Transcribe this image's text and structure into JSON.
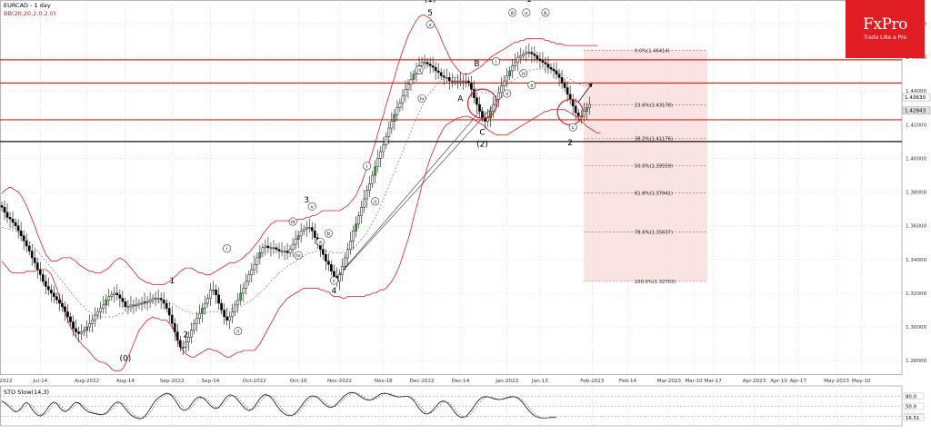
{
  "header": {
    "symbol_title": "EURCAD - 1 day",
    "indicator_label": "BB(20,20.2,0.2.0)",
    "stoch_label": "STO Slow(14,3)"
  },
  "brand": {
    "name": "FxPro",
    "tagline": "Trade Like a Pro",
    "color": "#e11d24"
  },
  "colors": {
    "candle_up": "#ffffff",
    "candle_down": "#000000",
    "bands": "#e02020",
    "midband": "#666666",
    "level_red": "#e02020",
    "level_black": "#111111",
    "fib_zone": "#f7dada"
  },
  "chart_data": {
    "type": "candlestick",
    "symbol": "EURCAD",
    "timeframe": "1 day",
    "y_range": [
      1.272,
      1.494
    ],
    "y_ticks": [
      "1.48000",
      "1.46000",
      "1.44000",
      "1.42000",
      "1.40000",
      "1.38000",
      "1.36000",
      "1.34000",
      "1.32000",
      "1.30000",
      "1.28000"
    ],
    "x_labels": [
      "Jul-2022",
      "Jul-14",
      "Aug-2022",
      "Aug-14",
      "Sep-2022",
      "Sep-14",
      "Oct-2022",
      "Oct-16",
      "Nov-2022",
      "Nov-16",
      "Dec-2022",
      "Dec-14",
      "Jan-2023",
      "Jan-13",
      "Feb-2023",
      "Feb-14",
      "Mar-2023",
      "Mar-10",
      "Mar-17",
      "Apr-2023",
      "Apr-10",
      "Apr-17",
      "May-2023",
      "May-10"
    ],
    "x_label_days": [
      0,
      14,
      31,
      45,
      62,
      76,
      92,
      108,
      123,
      139,
      153,
      167,
      184,
      196,
      215,
      228,
      243,
      252,
      259,
      274,
      283,
      290,
      304,
      313
    ],
    "x_max_day": 330,
    "price_labels": [
      "1.43630",
      "1.42843"
    ],
    "price_label_values": [
      1.4363,
      1.42843
    ],
    "horizontal_levels": [
      {
        "price": 1.4585,
        "color": "red"
      },
      {
        "price": 1.4447,
        "color": "red"
      },
      {
        "price": 1.4229,
        "color": "red"
      },
      {
        "price": 1.41,
        "color": "black"
      }
    ],
    "fibonacci": {
      "start_day": 212,
      "end_day": 257,
      "levels": [
        {
          "label": "0.0%(1.46414)",
          "price": 1.46414
        },
        {
          "label": "23.6%(1.43178)",
          "price": 1.43178
        },
        {
          "label": "38.2%(1.41176)",
          "price": 1.41176
        },
        {
          "label": "50.0%(1.39559)",
          "price": 1.39559
        },
        {
          "label": "61.8%(1.37941)",
          "price": 1.37941
        },
        {
          "label": "78.6%(1.35637)",
          "price": 1.35637
        },
        {
          "label": "100.0%(1.32703)",
          "price": 1.32703
        }
      ]
    },
    "closes": [
      1.371,
      1.368,
      1.365,
      1.364,
      1.362,
      1.36,
      1.357,
      1.354,
      1.351,
      1.348,
      1.345,
      1.341,
      1.338,
      1.334,
      1.331,
      1.327,
      1.324,
      1.322,
      1.32,
      1.318,
      1.316,
      1.314,
      1.312,
      1.309,
      1.306,
      1.303,
      1.299,
      1.297,
      1.296,
      1.297,
      1.298,
      1.3,
      1.302,
      1.304,
      1.307,
      1.309,
      1.311,
      1.313,
      1.316,
      1.318,
      1.319,
      1.32,
      1.319,
      1.317,
      1.315,
      1.312,
      1.312,
      1.313,
      1.313,
      1.313,
      1.314,
      1.314,
      1.315,
      1.315,
      1.316,
      1.317,
      1.317,
      1.317,
      1.316,
      1.314,
      1.311,
      1.307,
      1.302,
      1.297,
      1.292,
      1.288,
      1.288,
      1.291,
      1.294,
      1.298,
      1.302,
      1.305,
      1.308,
      1.311,
      1.314,
      1.317,
      1.322,
      1.322,
      1.319,
      1.314,
      1.31,
      1.306,
      1.304,
      1.306,
      1.309,
      1.313,
      1.316,
      1.32,
      1.323,
      1.327,
      1.331,
      1.334,
      1.337,
      1.341,
      1.344,
      1.347,
      1.348,
      1.347,
      1.347,
      1.347,
      1.346,
      1.345,
      1.345,
      1.345,
      1.344,
      1.346,
      1.349,
      1.352,
      1.354,
      1.357,
      1.358,
      1.359,
      1.359,
      1.357,
      1.353,
      1.349,
      1.346,
      1.343,
      1.339,
      1.337,
      1.333,
      1.33,
      1.327,
      1.331,
      1.336,
      1.341,
      1.346,
      1.351,
      1.357,
      1.361,
      1.366,
      1.371,
      1.376,
      1.381,
      1.385,
      1.39,
      1.395,
      1.4,
      1.404,
      1.408,
      1.413,
      1.418,
      1.422,
      1.426,
      1.43,
      1.433,
      1.437,
      1.441,
      1.444,
      1.447,
      1.45,
      1.453,
      1.455,
      1.457,
      1.457,
      1.456,
      1.455,
      1.454,
      1.452,
      1.451,
      1.449,
      1.448,
      1.448,
      1.446,
      1.446,
      1.446,
      1.446,
      1.446,
      1.446,
      1.446,
      1.445,
      1.441,
      1.436,
      1.432,
      1.428,
      1.424,
      1.422,
      1.424,
      1.428,
      1.432,
      1.435,
      1.439,
      1.443,
      1.446,
      1.449,
      1.452,
      1.455,
      1.457,
      1.46,
      1.461,
      1.462,
      1.463,
      1.463,
      1.462,
      1.461,
      1.459,
      1.458,
      1.457,
      1.456,
      1.454,
      1.453,
      1.452,
      1.45,
      1.448,
      1.445,
      1.442,
      1.438,
      1.435,
      1.431,
      1.427,
      1.425,
      1.425,
      1.428,
      1.43,
      1.432
    ],
    "upper_band": [
      1.379,
      1.381,
      1.382,
      1.383,
      1.382,
      1.381,
      1.38,
      1.378,
      1.375,
      1.372,
      1.368,
      1.364,
      1.36,
      1.355,
      1.351,
      1.347,
      1.343,
      1.341,
      1.339,
      1.339,
      1.339,
      1.34,
      1.341,
      1.341,
      1.341,
      1.341,
      1.34,
      1.339,
      1.337,
      1.336,
      1.335,
      1.334,
      1.333,
      1.333,
      1.332,
      1.332,
      1.332,
      1.333,
      1.334,
      1.335,
      1.337,
      1.339,
      1.34,
      1.341,
      1.34,
      1.339,
      1.337,
      1.335,
      1.333,
      1.331,
      1.329,
      1.328,
      1.327,
      1.326,
      1.326,
      1.325,
      1.325,
      1.325,
      1.325,
      1.325,
      1.326,
      1.327,
      1.328,
      1.33,
      1.331,
      1.333,
      1.334,
      1.335,
      1.335,
      1.335,
      1.334,
      1.333,
      1.332,
      1.332,
      1.331,
      1.331,
      1.331,
      1.332,
      1.333,
      1.334,
      1.335,
      1.336,
      1.337,
      1.338,
      1.338,
      1.338,
      1.339,
      1.34,
      1.341,
      1.343,
      1.344,
      1.346,
      1.348,
      1.35,
      1.352,
      1.355,
      1.357,
      1.359,
      1.361,
      1.362,
      1.363,
      1.363,
      1.363,
      1.363,
      1.363,
      1.363,
      1.363,
      1.363,
      1.364,
      1.364,
      1.364,
      1.365,
      1.365,
      1.366,
      1.366,
      1.367,
      1.368,
      1.369,
      1.369,
      1.369,
      1.369,
      1.369,
      1.369,
      1.369,
      1.37,
      1.371,
      1.372,
      1.374,
      1.376,
      1.378,
      1.382,
      1.385,
      1.39,
      1.394,
      1.399,
      1.404,
      1.409,
      1.415,
      1.421,
      1.426,
      1.432,
      1.437,
      1.443,
      1.448,
      1.454,
      1.459,
      1.464,
      1.468,
      1.473,
      1.476,
      1.479,
      1.482,
      1.484,
      1.485,
      1.485,
      1.484,
      1.483,
      1.481,
      1.478,
      1.475,
      1.471,
      1.467,
      1.464,
      1.46,
      1.457,
      1.455,
      1.453,
      1.451,
      1.45,
      1.45,
      1.45,
      1.451,
      1.452,
      1.453,
      1.454,
      1.455,
      1.457,
      1.458,
      1.46,
      1.461,
      1.462,
      1.463,
      1.464,
      1.465,
      1.466,
      1.467,
      1.468,
      1.469,
      1.469,
      1.47,
      1.47,
      1.471,
      1.471,
      1.471,
      1.471,
      1.471,
      1.471,
      1.471,
      1.47,
      1.47,
      1.469,
      1.469,
      1.468,
      1.468,
      1.468,
      1.467,
      1.467,
      1.467,
      1.467,
      1.467,
      1.467,
      1.467,
      1.467,
      1.467,
      1.467,
      1.467,
      1.467,
      1.467
    ],
    "middle_band": [
      1.359,
      1.359,
      1.358,
      1.358,
      1.357,
      1.357,
      1.356,
      1.355,
      1.354,
      1.352,
      1.351,
      1.349,
      1.347,
      1.345,
      1.343,
      1.341,
      1.339,
      1.337,
      1.335,
      1.333,
      1.331,
      1.329,
      1.327,
      1.325,
      1.323,
      1.321,
      1.319,
      1.317,
      1.315,
      1.313,
      1.312,
      1.31,
      1.309,
      1.308,
      1.307,
      1.306,
      1.306,
      1.306,
      1.306,
      1.306,
      1.306,
      1.306,
      1.307,
      1.308,
      1.308,
      1.309,
      1.31,
      1.311,
      1.312,
      1.313,
      1.313,
      1.314,
      1.315,
      1.315,
      1.315,
      1.315,
      1.315,
      1.315,
      1.315,
      1.315,
      1.315,
      1.314,
      1.314,
      1.313,
      1.312,
      1.311,
      1.31,
      1.309,
      1.309,
      1.308,
      1.308,
      1.308,
      1.308,
      1.308,
      1.308,
      1.309,
      1.309,
      1.309,
      1.309,
      1.309,
      1.309,
      1.309,
      1.31,
      1.31,
      1.311,
      1.311,
      1.312,
      1.312,
      1.313,
      1.314,
      1.315,
      1.316,
      1.317,
      1.319,
      1.32,
      1.322,
      1.323,
      1.325,
      1.327,
      1.329,
      1.33,
      1.332,
      1.333,
      1.335,
      1.336,
      1.337,
      1.338,
      1.339,
      1.34,
      1.341,
      1.342,
      1.343,
      1.344,
      1.344,
      1.345,
      1.345,
      1.345,
      1.345,
      1.345,
      1.345,
      1.344,
      1.344,
      1.344,
      1.344,
      1.344,
      1.344,
      1.345,
      1.346,
      1.347,
      1.348,
      1.35,
      1.352,
      1.354,
      1.356,
      1.359,
      1.362,
      1.365,
      1.368,
      1.372,
      1.376,
      1.38,
      1.384,
      1.388,
      1.392,
      1.396,
      1.4,
      1.404,
      1.408,
      1.412,
      1.416,
      1.42,
      1.424,
      1.427,
      1.431,
      1.434,
      1.437,
      1.439,
      1.441,
      1.443,
      1.445,
      1.446,
      1.447,
      1.448,
      1.448,
      1.448,
      1.448,
      1.448,
      1.447,
      1.446,
      1.445,
      1.444,
      1.443,
      1.442,
      1.441,
      1.44,
      1.439,
      1.439,
      1.439,
      1.439,
      1.439,
      1.44,
      1.441,
      1.442,
      1.443,
      1.444,
      1.445,
      1.446,
      1.447,
      1.448,
      1.449,
      1.45,
      1.451,
      1.452,
      1.452,
      1.453,
      1.453,
      1.453,
      1.453,
      1.453,
      1.453,
      1.453,
      1.452,
      1.451,
      1.451,
      1.45,
      1.449,
      1.448,
      1.447,
      1.446,
      1.445,
      1.444,
      1.444,
      1.443,
      1.443,
      1.443
    ],
    "lower_band": [
      1.339,
      1.337,
      1.335,
      1.333,
      1.332,
      1.332,
      1.332,
      1.332,
      1.332,
      1.333,
      1.333,
      1.333,
      1.333,
      1.334,
      1.334,
      1.334,
      1.334,
      1.333,
      1.331,
      1.327,
      1.323,
      1.318,
      1.313,
      1.309,
      1.304,
      1.3,
      1.297,
      1.294,
      1.292,
      1.29,
      1.288,
      1.287,
      1.285,
      1.283,
      1.281,
      1.28,
      1.279,
      1.279,
      1.278,
      1.277,
      1.275,
      1.274,
      1.274,
      1.274,
      1.275,
      1.278,
      1.282,
      1.286,
      1.29,
      1.294,
      1.298,
      1.3,
      1.302,
      1.304,
      1.305,
      1.306,
      1.305,
      1.305,
      1.304,
      1.304,
      1.304,
      1.302,
      1.3,
      1.297,
      1.292,
      1.288,
      1.286,
      1.284,
      1.283,
      1.282,
      1.282,
      1.283,
      1.284,
      1.285,
      1.286,
      1.287,
      1.287,
      1.286,
      1.286,
      1.285,
      1.284,
      1.283,
      1.282,
      1.282,
      1.283,
      1.284,
      1.285,
      1.285,
      1.286,
      1.286,
      1.286,
      1.286,
      1.286,
      1.288,
      1.29,
      1.293,
      1.296,
      1.299,
      1.302,
      1.305,
      1.308,
      1.311,
      1.313,
      1.315,
      1.317,
      1.318,
      1.319,
      1.32,
      1.321,
      1.322,
      1.323,
      1.323,
      1.323,
      1.323,
      1.323,
      1.323,
      1.322,
      1.322,
      1.321,
      1.321,
      1.319,
      1.318,
      1.318,
      1.318,
      1.317,
      1.317,
      1.318,
      1.318,
      1.318,
      1.318,
      1.318,
      1.318,
      1.318,
      1.319,
      1.319,
      1.32,
      1.32,
      1.321,
      1.322,
      1.322,
      1.323,
      1.325,
      1.327,
      1.33,
      1.333,
      1.337,
      1.342,
      1.347,
      1.352,
      1.358,
      1.365,
      1.371,
      1.377,
      1.384,
      1.389,
      1.395,
      1.4,
      1.404,
      1.408,
      1.412,
      1.415,
      1.418,
      1.42,
      1.421,
      1.422,
      1.423,
      1.424,
      1.424,
      1.425,
      1.425,
      1.425,
      1.424,
      1.423,
      1.422,
      1.421,
      1.42,
      1.419,
      1.417,
      1.416,
      1.415,
      1.414,
      1.414,
      1.414,
      1.414,
      1.414,
      1.415,
      1.416,
      1.417,
      1.418,
      1.419,
      1.42,
      1.421,
      1.422,
      1.423,
      1.424,
      1.425,
      1.426,
      1.427,
      1.428,
      1.428,
      1.429,
      1.429,
      1.429,
      1.429,
      1.429,
      1.429,
      1.428,
      1.427,
      1.426,
      1.425,
      1.424,
      1.422,
      1.421,
      1.419,
      1.418,
      1.417,
      1.416,
      1.415,
      1.415
    ],
    "wave_labels": [
      {
        "text": "(0)",
        "day": 45,
        "price": 1.2815
      },
      {
        "text": "1",
        "day": 62,
        "price": 1.3275
      },
      {
        "text": "2",
        "day": 67,
        "price": 1.2955
      },
      {
        "text": "3",
        "day": 111,
        "price": 1.3755
      },
      {
        "text": "4",
        "day": 121,
        "price": 1.3215
      },
      {
        "text": "(1)",
        "day": 156,
        "price": 1.4945
      },
      {
        "text": "5",
        "day": 156,
        "price": 1.4865
      },
      {
        "text": "A",
        "day": 167,
        "price": 1.4355
      },
      {
        "text": "B",
        "day": 173,
        "price": 1.4563
      },
      {
        "text": "C",
        "day": 175,
        "price": 1.4156
      },
      {
        "text": "(2)",
        "day": 175,
        "price": 1.4085
      },
      {
        "text": "1",
        "day": 192,
        "price": 1.4945
      },
      {
        "text": "2",
        "day": 207,
        "price": 1.4095
      }
    ],
    "circled_labels": [
      {
        "text": "i",
        "day": 82,
        "price": 1.3465
      },
      {
        "text": "ii",
        "day": 86,
        "price": 1.2975
      },
      {
        "text": "iii",
        "day": 106,
        "price": 1.3625
      },
      {
        "text": "iv",
        "day": 108,
        "price": 1.3425
      },
      {
        "text": "v",
        "day": 113,
        "price": 1.3715
      },
      {
        "text": "a",
        "day": 116,
        "price": 1.3505
      },
      {
        "text": "b",
        "day": 119,
        "price": 1.3555
      },
      {
        "text": "c",
        "day": 121,
        "price": 1.3275
      },
      {
        "text": "i",
        "day": 133,
        "price": 1.3955
      },
      {
        "text": "ii",
        "day": 136,
        "price": 1.3745
      },
      {
        "text": "iii",
        "day": 152,
        "price": 1.4525
      },
      {
        "text": "iv",
        "day": 153,
        "price": 1.4355
      },
      {
        "text": "v",
        "day": 156,
        "price": 1.4795
      },
      {
        "text": "i",
        "day": 180,
        "price": 1.4575
      },
      {
        "text": "ii",
        "day": 184,
        "price": 1.4385
      },
      {
        "text": "iii",
        "day": 186,
        "price": 1.4865
      },
      {
        "text": "iv",
        "day": 190,
        "price": 1.4505
      },
      {
        "text": "v",
        "day": 191,
        "price": 1.4865
      },
      {
        "text": "a",
        "day": 193,
        "price": 1.4435
      },
      {
        "text": "b",
        "day": 198,
        "price": 1.4865
      },
      {
        "text": "c",
        "day": 208,
        "price": 1.4185
      }
    ],
    "stochastic": {
      "label": "STO Slow(14,3)",
      "y_ticks": [
        "80.0",
        "50.0",
        "20.0",
        "16.51"
      ],
      "y_tick_values": [
        80,
        50,
        20,
        16.51
      ],
      "k": [
        66.0,
        60.0,
        54.0,
        46.0,
        38.0,
        33.0,
        36.0,
        44.0,
        56.0,
        62.0,
        55.0,
        42.0,
        31.0,
        24.0,
        21.0,
        26.0,
        36.0,
        48.0,
        58.0,
        63.0,
        58.0,
        47.0,
        38.0,
        34.0,
        38.0,
        46.0,
        56.0,
        62.0,
        60.0,
        52.0,
        43.0,
        36.0,
        32.0,
        30.0,
        28.0,
        26.0,
        25.0,
        26.0,
        30.0,
        38.0,
        49.0,
        58.0,
        63.0,
        61.0,
        53.0,
        43.0,
        33.0,
        25.0,
        19.0,
        15.0,
        13.0,
        14.0,
        20.0,
        30.0,
        43.0,
        56.0,
        67.0,
        75.0,
        81.0,
        86.0,
        89.0,
        87.0,
        81.0,
        70.0,
        57.0,
        45.0,
        38.0,
        38.0,
        45.0,
        56.0,
        67.0,
        75.0,
        78.0,
        76.0,
        70.0,
        61.0,
        52.0,
        46.0,
        43.0,
        47.0,
        57.0,
        69.0,
        79.0,
        84.0,
        83.0,
        77.0,
        68.0,
        58.0,
        48.0,
        41.0,
        37.0,
        40.0,
        49.0,
        61.0,
        73.0,
        82.0,
        85.0,
        83.0,
        76.0,
        66.0,
        54.0,
        43.0,
        34.0,
        27.0,
        23.0,
        22.0,
        24.0,
        30.0,
        39.0,
        50.0,
        61.0,
        71.0,
        78.0,
        81.0,
        80.0,
        76.0,
        69.0,
        60.0,
        53.0,
        48.0,
        47.0,
        50.0,
        57.0,
        66.0,
        75.0,
        83.0,
        88.0,
        91.0,
        91.0,
        88.0,
        83.0,
        77.0,
        72.0,
        69.0,
        68.0,
        71.0,
        76.0,
        82.0,
        87.0,
        89.0,
        89.0,
        86.0,
        83.0,
        80.0,
        78.0,
        78.0,
        79.0,
        80.0,
        79.0,
        75.0,
        67.0,
        56.0,
        44.0,
        34.0,
        28.0,
        27.0,
        31.0,
        39.0,
        49.0,
        58.0,
        64.0,
        66.0,
        62.0,
        54.0,
        43.0,
        32.0,
        23.0,
        18.0,
        17.0,
        20.0,
        28.0,
        38.0,
        50.0,
        62.0,
        71.0,
        77.0,
        79.0,
        78.0,
        76.0,
        73.0,
        71.0,
        70.0,
        71.0,
        73.0,
        76.0,
        78.0,
        79.0,
        78.0,
        74.0,
        67.0,
        58.0,
        47.0,
        37.0,
        28.0,
        22.0,
        18.0,
        16.0,
        15.0,
        15.0,
        16.0,
        17.0,
        17.0,
        17.0
      ]
    }
  }
}
